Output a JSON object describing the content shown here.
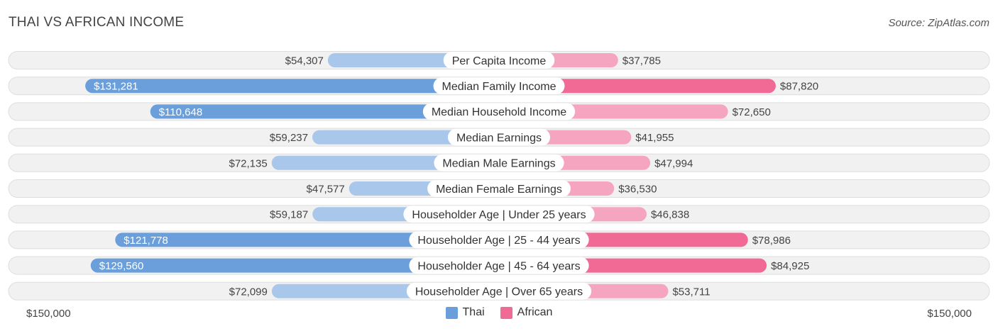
{
  "title": "THAI VS AFRICAN INCOME",
  "source": "Source: ZipAtlas.com",
  "axis": {
    "left_label": "$150,000",
    "right_label": "$150,000"
  },
  "legend": [
    {
      "name": "Thai",
      "color": "#6a9fdb"
    },
    {
      "name": "African",
      "color": "#f06a95"
    }
  ],
  "chart_data": {
    "type": "bar",
    "orientation": "horizontal-diverging",
    "title": "THAI VS AFRICAN INCOME",
    "xlim": [
      -150000,
      150000
    ],
    "categories": [
      "Per Capita Income",
      "Median Family Income",
      "Median Household Income",
      "Median Earnings",
      "Median Male Earnings",
      "Median Female Earnings",
      "Householder Age | Under 25 years",
      "Householder Age | 25 - 44 years",
      "Householder Age | 45 - 64 years",
      "Householder Age | Over 65 years"
    ],
    "series": [
      {
        "name": "Thai",
        "side": "left",
        "values": [
          54307,
          131281,
          110648,
          59237,
          72135,
          47577,
          59187,
          121778,
          129560,
          72099
        ],
        "labels": [
          "$54,307",
          "$131,281",
          "$110,648",
          "$59,237",
          "$72,135",
          "$47,577",
          "$59,187",
          "$121,778",
          "$129,560",
          "$72,099"
        ]
      },
      {
        "name": "African",
        "side": "right",
        "values": [
          37785,
          87820,
          72650,
          41955,
          47994,
          36530,
          46838,
          78986,
          84925,
          53711
        ],
        "labels": [
          "$37,785",
          "$87,820",
          "$72,650",
          "$41,955",
          "$47,994",
          "$36,530",
          "$46,838",
          "$78,986",
          "$84,925",
          "$53,711"
        ]
      }
    ],
    "colors": {
      "left_strong": "#6a9fdb",
      "left_light": "#a8c7ea",
      "right_strong": "#f06a95",
      "right_light": "#f5a5bf",
      "track": "#f1f1f1",
      "track_border": "#dedede"
    }
  }
}
